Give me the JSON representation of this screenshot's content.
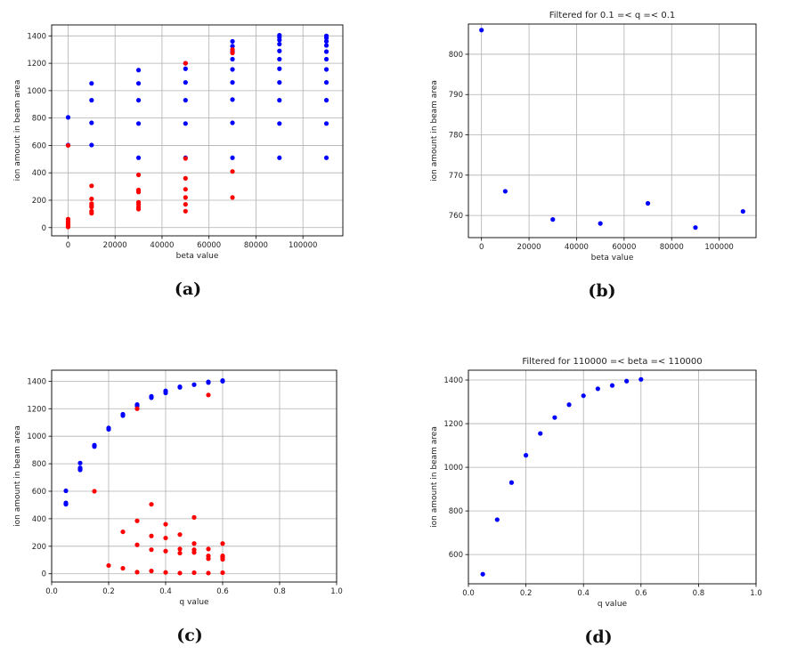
{
  "chart_data": [
    {
      "type": "scatter",
      "caption": "(a)",
      "title": "",
      "xlabel": "beta value",
      "ylabel": "ion amount in beam area",
      "xlim": [
        -7000,
        117000
      ],
      "ylim": [
        -60,
        1480
      ],
      "xticks": [
        0,
        20000,
        40000,
        60000,
        80000,
        100000
      ],
      "yticks": [
        0,
        200,
        400,
        600,
        800,
        1000,
        1200,
        1400
      ],
      "grid": true,
      "series": [
        {
          "color": "#0000ff",
          "points": [
            [
              0,
              805
            ],
            [
              0,
              603
            ],
            [
              10000,
              1053
            ],
            [
              10000,
              930
            ],
            [
              10000,
              765
            ],
            [
              10000,
              603
            ],
            [
              30000,
              1150
            ],
            [
              30000,
              1053
            ],
            [
              30000,
              930
            ],
            [
              30000,
              760
            ],
            [
              30000,
              510
            ],
            [
              50000,
              1200
            ],
            [
              50000,
              1160
            ],
            [
              50000,
              1060
            ],
            [
              50000,
              930
            ],
            [
              50000,
              760
            ],
            [
              50000,
              510
            ],
            [
              70000,
              1360
            ],
            [
              70000,
              1325
            ],
            [
              70000,
              1285
            ],
            [
              70000,
              1230
            ],
            [
              70000,
              1155
            ],
            [
              70000,
              1060
            ],
            [
              70000,
              935
            ],
            [
              70000,
              765
            ],
            [
              70000,
              510
            ],
            [
              90000,
              1405
            ],
            [
              90000,
              1390
            ],
            [
              90000,
              1370
            ],
            [
              90000,
              1340
            ],
            [
              90000,
              1290
            ],
            [
              90000,
              1230
            ],
            [
              90000,
              1160
            ],
            [
              90000,
              1060
            ],
            [
              90000,
              930
            ],
            [
              90000,
              760
            ],
            [
              90000,
              510
            ],
            [
              110000,
              1400
            ],
            [
              110000,
              1385
            ],
            [
              110000,
              1360
            ],
            [
              110000,
              1330
            ],
            [
              110000,
              1285
            ],
            [
              110000,
              1230
            ],
            [
              110000,
              1155
            ],
            [
              110000,
              1060
            ],
            [
              110000,
              930
            ],
            [
              110000,
              760
            ],
            [
              110000,
              510
            ]
          ]
        },
        {
          "color": "#ff0000",
          "points": [
            [
              0,
              600
            ],
            [
              0,
              62
            ],
            [
              0,
              45
            ],
            [
              0,
              35
            ],
            [
              0,
              22
            ],
            [
              0,
              12
            ],
            [
              0,
              5
            ],
            [
              10000,
              305
            ],
            [
              10000,
              210
            ],
            [
              10000,
              175
            ],
            [
              10000,
              160
            ],
            [
              10000,
              150
            ],
            [
              10000,
              120
            ],
            [
              10000,
              105
            ],
            [
              30000,
              385
            ],
            [
              30000,
              275
            ],
            [
              30000,
              260
            ],
            [
              30000,
              185
            ],
            [
              30000,
              170
            ],
            [
              30000,
              150
            ],
            [
              30000,
              135
            ],
            [
              50000,
              1200
            ],
            [
              50000,
              505
            ],
            [
              50000,
              360
            ],
            [
              50000,
              280
            ],
            [
              50000,
              220
            ],
            [
              50000,
              170
            ],
            [
              50000,
              120
            ],
            [
              70000,
              1300
            ],
            [
              70000,
              1275
            ],
            [
              70000,
              410
            ],
            [
              70000,
              220
            ]
          ]
        }
      ]
    },
    {
      "type": "scatter",
      "caption": "(b)",
      "title": "Filtered for 0.1 =< q =< 0.1",
      "xlabel": "beta value",
      "ylabel": "ion amount in beam area",
      "xlim": [
        -5500,
        115500
      ],
      "ylim": [
        754.5,
        807.5
      ],
      "xticks": [
        0,
        20000,
        40000,
        60000,
        80000,
        100000
      ],
      "yticks": [
        760,
        770,
        780,
        790,
        800
      ],
      "grid": true,
      "series": [
        {
          "color": "#0000ff",
          "points": [
            [
              0,
              806
            ],
            [
              10000,
              766
            ],
            [
              30000,
              759
            ],
            [
              50000,
              758
            ],
            [
              70000,
              763
            ],
            [
              90000,
              757
            ],
            [
              110000,
              761
            ]
          ]
        }
      ]
    },
    {
      "type": "scatter",
      "caption": "(c)",
      "title": "",
      "xlabel": "q value",
      "ylabel": "ion amount in beam area",
      "xlim": [
        0.0,
        1.0
      ],
      "ylim": [
        -60,
        1480
      ],
      "xticks": [
        0.0,
        0.2,
        0.4,
        0.6,
        0.8,
        1.0
      ],
      "yticks": [
        0,
        200,
        400,
        600,
        800,
        1000,
        1200,
        1400
      ],
      "grid": true,
      "series": [
        {
          "color": "#0000ff",
          "points": [
            [
              0.05,
              603
            ],
            [
              0.05,
              515
            ],
            [
              0.05,
              505
            ],
            [
              0.1,
              805
            ],
            [
              0.1,
              770
            ],
            [
              0.1,
              760
            ],
            [
              0.1,
              755
            ],
            [
              0.15,
              935
            ],
            [
              0.15,
              925
            ],
            [
              0.2,
              1060
            ],
            [
              0.2,
              1050
            ],
            [
              0.25,
              1160
            ],
            [
              0.25,
              1150
            ],
            [
              0.3,
              1230
            ],
            [
              0.3,
              1220
            ],
            [
              0.35,
              1290
            ],
            [
              0.35,
              1280
            ],
            [
              0.4,
              1330
            ],
            [
              0.4,
              1315
            ],
            [
              0.45,
              1360
            ],
            [
              0.45,
              1355
            ],
            [
              0.5,
              1375
            ],
            [
              0.55,
              1395
            ],
            [
              0.55,
              1390
            ],
            [
              0.6,
              1405
            ],
            [
              0.6,
              1400
            ]
          ]
        },
        {
          "color": "#ff0000",
          "points": [
            [
              0.15,
              600
            ],
            [
              0.2,
              60
            ],
            [
              0.25,
              305
            ],
            [
              0.25,
              40
            ],
            [
              0.3,
              1200
            ],
            [
              0.3,
              385
            ],
            [
              0.3,
              210
            ],
            [
              0.3,
              12
            ],
            [
              0.35,
              505
            ],
            [
              0.35,
              275
            ],
            [
              0.35,
              175
            ],
            [
              0.35,
              20
            ],
            [
              0.4,
              360
            ],
            [
              0.4,
              260
            ],
            [
              0.4,
              165
            ],
            [
              0.4,
              10
            ],
            [
              0.45,
              285
            ],
            [
              0.45,
              180
            ],
            [
              0.45,
              150
            ],
            [
              0.45,
              5
            ],
            [
              0.5,
              410
            ],
            [
              0.5,
              220
            ],
            [
              0.5,
              175
            ],
            [
              0.5,
              155
            ],
            [
              0.5,
              8
            ],
            [
              0.55,
              1300
            ],
            [
              0.55,
              180
            ],
            [
              0.55,
              130
            ],
            [
              0.55,
              110
            ],
            [
              0.55,
              5
            ],
            [
              0.6,
              220
            ],
            [
              0.6,
              130
            ],
            [
              0.6,
              120
            ],
            [
              0.6,
              105
            ],
            [
              0.6,
              8
            ]
          ]
        }
      ]
    },
    {
      "type": "scatter",
      "caption": "(d)",
      "title": "Filtered for 110000 =< beta =< 110000",
      "xlabel": "q value",
      "ylabel": "ion amount in beam area",
      "xlim": [
        0.0,
        1.0
      ],
      "ylim": [
        466,
        1445
      ],
      "xticks": [
        0.0,
        0.2,
        0.4,
        0.6,
        0.8,
        1.0
      ],
      "yticks": [
        600,
        800,
        1000,
        1200,
        1400
      ],
      "grid": true,
      "series": [
        {
          "color": "#0000ff",
          "points": [
            [
              0.05,
              510
            ],
            [
              0.1,
              760
            ],
            [
              0.15,
              930
            ],
            [
              0.2,
              1055
            ],
            [
              0.25,
              1155
            ],
            [
              0.3,
              1228
            ],
            [
              0.35,
              1287
            ],
            [
              0.4,
              1328
            ],
            [
              0.45,
              1360
            ],
            [
              0.5,
              1375
            ],
            [
              0.55,
              1395
            ],
            [
              0.6,
              1403
            ]
          ]
        }
      ]
    }
  ]
}
